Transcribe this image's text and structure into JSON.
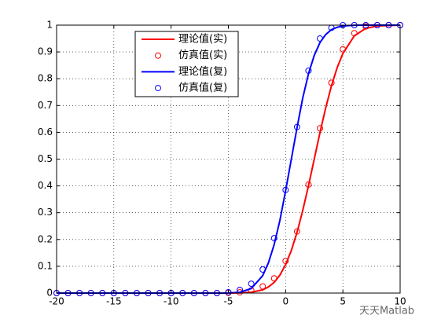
{
  "chart_data": {
    "type": "line",
    "xlim": [
      -20,
      10
    ],
    "xticks": [
      -20,
      -15,
      -10,
      -5,
      0,
      5,
      10
    ],
    "ylim": [
      0,
      1
    ],
    "yticks": [
      0,
      0.1,
      0.2,
      0.3,
      0.4,
      0.5,
      0.6,
      0.7,
      0.8,
      0.9,
      1
    ],
    "grid": true,
    "legend_position": "north",
    "series": [
      {
        "name": "理论值(实)",
        "color": "#ff0000",
        "style": "line",
        "x": [
          -20,
          -8,
          -6,
          -5,
          -4,
          -3,
          -2,
          -1.5,
          -1,
          -0.5,
          0,
          0.5,
          1,
          1.5,
          2,
          2.5,
          3,
          3.5,
          4,
          4.5,
          5,
          6,
          7,
          8,
          10
        ],
        "values": [
          0,
          0,
          0,
          0.0001,
          0.0006,
          0.003,
          0.012,
          0.023,
          0.04,
          0.067,
          0.106,
          0.159,
          0.227,
          0.309,
          0.401,
          0.5,
          0.599,
          0.691,
          0.773,
          0.841,
          0.894,
          0.96,
          0.988,
          0.997,
          1
        ]
      },
      {
        "name": "仿真值(实)",
        "color": "#ff0000",
        "style": "markers",
        "x": [
          -20,
          -19,
          -18,
          -17,
          -16,
          -15,
          -14,
          -13,
          -12,
          -11,
          -10,
          -9,
          -8,
          -7,
          -6,
          -5,
          -4,
          -3,
          -2,
          -1,
          0,
          1,
          2,
          3,
          4,
          5,
          6,
          7,
          8,
          9,
          10
        ],
        "values": [
          0,
          0,
          0,
          0,
          0,
          0,
          0,
          0,
          0,
          0,
          0,
          0,
          0,
          0,
          0,
          0.001,
          0.003,
          0.01,
          0.025,
          0.055,
          0.12,
          0.23,
          0.405,
          0.615,
          0.785,
          0.91,
          0.97,
          0.995,
          1,
          1,
          1
        ]
      },
      {
        "name": "理论值(复)",
        "color": "#0000ff",
        "style": "line",
        "x": [
          -20,
          -8,
          -6,
          -5,
          -4,
          -3,
          -2,
          -1.5,
          -1,
          -0.5,
          0,
          0.5,
          1,
          1.5,
          2,
          2.5,
          3,
          3.5,
          4,
          4.5,
          5,
          6,
          7,
          8,
          10
        ],
        "values": [
          0,
          0,
          0,
          0.0004,
          0.003,
          0.017,
          0.065,
          0.113,
          0.181,
          0.271,
          0.382,
          0.5,
          0.618,
          0.729,
          0.819,
          0.887,
          0.935,
          0.965,
          0.983,
          0.992,
          0.997,
          0.9996,
          1,
          1,
          1
        ]
      },
      {
        "name": "仿真值(复)",
        "color": "#0000ff",
        "style": "markers",
        "x": [
          -20,
          -19,
          -18,
          -17,
          -16,
          -15,
          -14,
          -13,
          -12,
          -11,
          -10,
          -9,
          -8,
          -7,
          -6,
          -5,
          -4,
          -3,
          -2,
          -1,
          0,
          1,
          2,
          3,
          4,
          5,
          6,
          7,
          8,
          9,
          10
        ],
        "values": [
          0,
          0,
          0,
          0,
          0,
          0,
          0,
          0,
          0,
          0,
          0,
          0,
          0,
          0,
          0,
          0.003,
          0.012,
          0.035,
          0.088,
          0.205,
          0.385,
          0.62,
          0.83,
          0.95,
          0.99,
          1,
          1,
          1,
          1,
          1,
          1
        ]
      }
    ],
    "watermark": "天天Matlab"
  }
}
